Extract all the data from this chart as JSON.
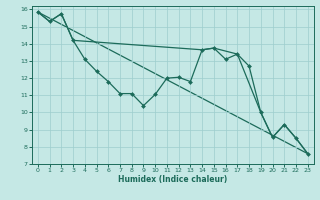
{
  "xlabel": "Humidex (Indice chaleur)",
  "background_color": "#c5e8e5",
  "grid_color": "#9ecece",
  "line_color": "#1c6b5a",
  "xlim": [
    -0.5,
    23.5
  ],
  "ylim": [
    7,
    16.2
  ],
  "xticks": [
    0,
    1,
    2,
    3,
    4,
    5,
    6,
    7,
    8,
    9,
    10,
    11,
    12,
    13,
    14,
    15,
    16,
    17,
    18,
    19,
    20,
    21,
    22,
    23
  ],
  "yticks": [
    7,
    8,
    9,
    10,
    11,
    12,
    13,
    14,
    15,
    16
  ],
  "line1_x": [
    0,
    1,
    2,
    3,
    4,
    5,
    6,
    7,
    8,
    9,
    10,
    11,
    12,
    13,
    14,
    15,
    16,
    17,
    18,
    19,
    20,
    21,
    22,
    23
  ],
  "line1_y": [
    15.85,
    15.3,
    15.75,
    14.2,
    13.1,
    12.4,
    11.8,
    11.1,
    11.1,
    10.4,
    11.05,
    12.0,
    12.05,
    11.8,
    13.65,
    13.75,
    13.1,
    13.4,
    12.7,
    10.0,
    8.55,
    9.3,
    8.5,
    7.6
  ],
  "line2_x": [
    0,
    1,
    2,
    3,
    14,
    15,
    17,
    19,
    20,
    21,
    22,
    23
  ],
  "line2_y": [
    15.85,
    15.3,
    15.75,
    14.2,
    13.65,
    13.75,
    13.4,
    10.0,
    8.55,
    9.3,
    8.5,
    7.6
  ],
  "line3_x": [
    0,
    23
  ],
  "line3_y": [
    15.85,
    7.6
  ]
}
